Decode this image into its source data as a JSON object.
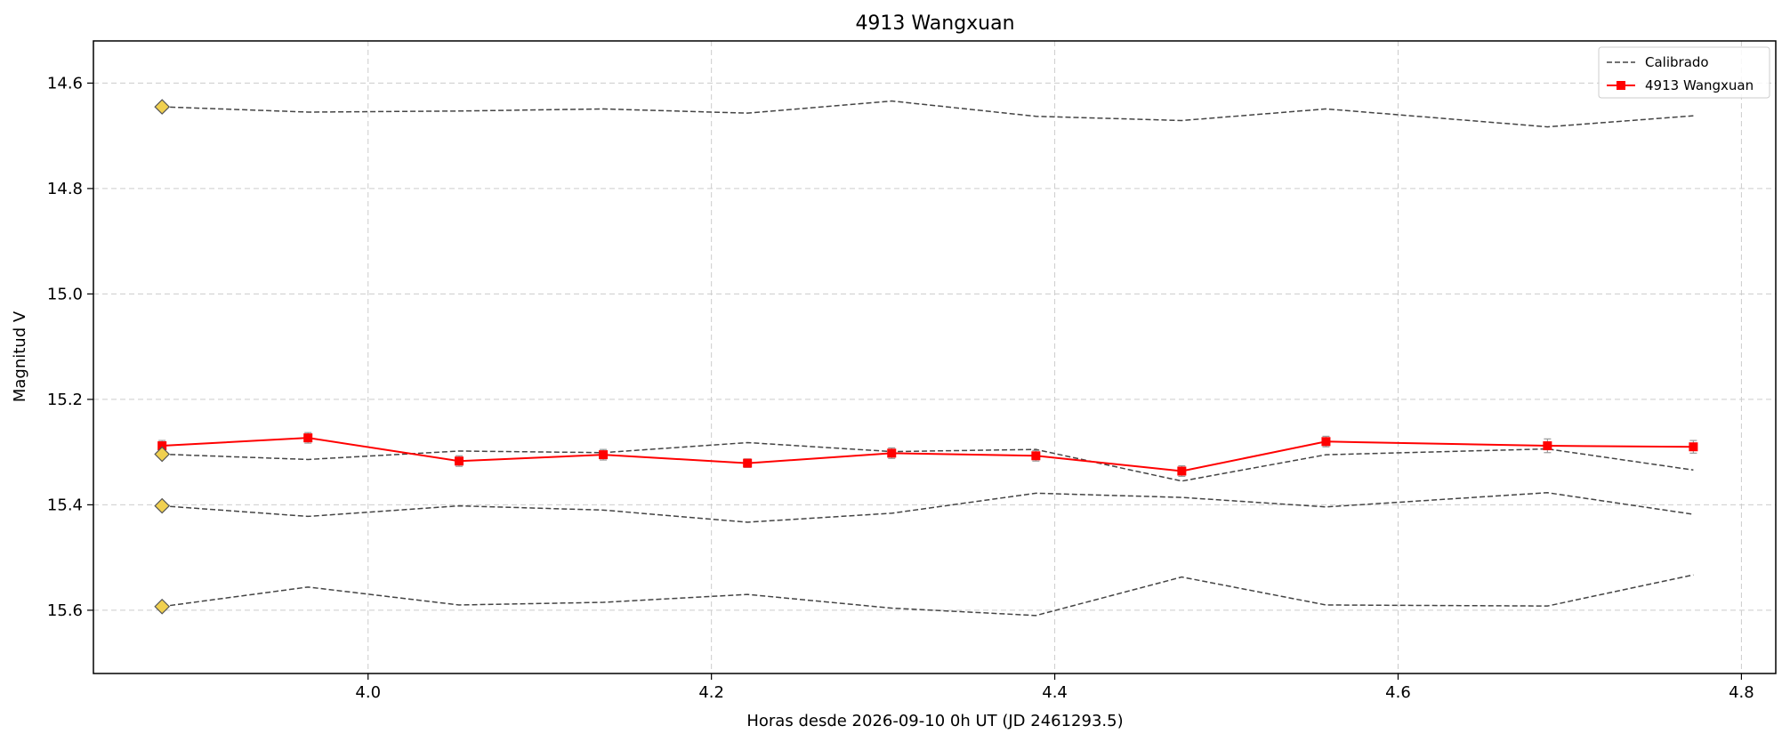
{
  "chart_data": {
    "type": "line",
    "title": "4913 Wangxuan",
    "xlabel": "Horas desde 2026-09-10 0h UT (JD 2461293.5)",
    "ylabel": "Magnitud V",
    "xlim": [
      3.84,
      4.82
    ],
    "ylim": [
      15.72,
      14.52
    ],
    "y_inverted": true,
    "grid": true,
    "legend_position": "top-right",
    "x_ticks": [
      4.0,
      4.2,
      4.4,
      4.6,
      4.8
    ],
    "x_tick_labels": [
      "4.0",
      "4.2",
      "4.4",
      "4.6",
      "4.8"
    ],
    "y_ticks": [
      14.6,
      14.8,
      15.0,
      15.2,
      15.4,
      15.6
    ],
    "y_tick_labels": [
      "14.6",
      "14.8",
      "15.0",
      "15.2",
      "15.4",
      "15.6"
    ],
    "x": [
      3.88,
      3.965,
      4.053,
      4.137,
      4.221,
      4.305,
      4.389,
      4.474,
      4.558,
      4.687,
      4.772
    ],
    "legend": [
      {
        "label": "Calibrado",
        "style": "dashed",
        "color": "#444444"
      },
      {
        "label": "4913 Wangxuan",
        "style": "solid-square",
        "color": "#ff0000"
      }
    ],
    "series": [
      {
        "name": "4913 Wangxuan",
        "color": "#ff0000",
        "values": [
          15.288,
          15.273,
          15.317,
          15.305,
          15.321,
          15.302,
          15.307,
          15.336,
          15.28,
          15.288,
          15.29
        ],
        "errors": [
          0.01,
          0.01,
          0.01,
          0.01,
          0.008,
          0.01,
          0.01,
          0.01,
          0.01,
          0.013,
          0.012
        ]
      },
      {
        "name": "Calibrado",
        "color": "#444444",
        "values": [
          14.645,
          14.655,
          14.653,
          14.649,
          14.657,
          14.634,
          14.663,
          14.671,
          14.649,
          14.683,
          14.662
        ]
      },
      {
        "color": "#444444",
        "values": [
          15.304,
          15.314,
          15.298,
          15.301,
          15.282,
          15.299,
          15.295,
          15.355,
          15.305,
          15.294,
          15.334
        ]
      },
      {
        "color": "#444444",
        "values": [
          15.402,
          15.422,
          15.402,
          15.41,
          15.433,
          15.416,
          15.378,
          15.386,
          15.404,
          15.377,
          15.418
        ]
      },
      {
        "color": "#444444",
        "values": [
          15.593,
          15.556,
          15.59,
          15.585,
          15.57,
          15.596,
          15.61,
          15.537,
          15.59,
          15.592,
          15.533
        ]
      }
    ],
    "comparison_markers": {
      "x": 3.88,
      "values": [
        14.645,
        15.304,
        15.402,
        15.593
      ],
      "color": "#f0d050"
    }
  }
}
